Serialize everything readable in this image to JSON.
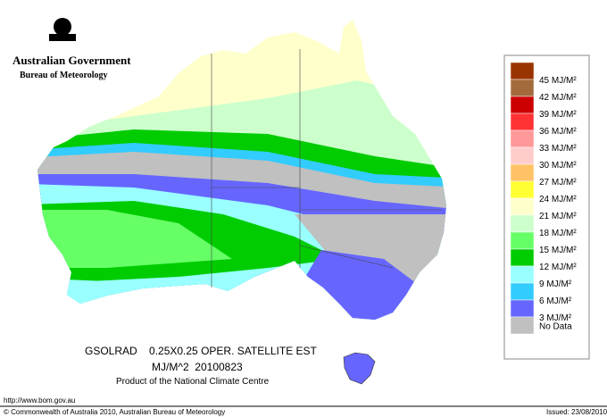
{
  "header": {
    "title": "Australian Government",
    "subtitle": "Bureau of Meteorology"
  },
  "legend": {
    "colors": [
      "#993300",
      "#a36a3c",
      "#cc0000",
      "#ff3333",
      "#ff9999",
      "#ffcccc",
      "#ffc266",
      "#ffff33",
      "#ffffcc",
      "#ccffcc",
      "#66ff66",
      "#00cc00",
      "#99ffff",
      "#33ccff",
      "#6666ff",
      "#c0c0c0"
    ],
    "labels": [
      "45 MJ/M²",
      "42 MJ/M²",
      "39 MJ/M²",
      "36 MJ/M²",
      "33 MJ/M²",
      "30 MJ/M²",
      "27 MJ/M²",
      "24 MJ/M²",
      "21 MJ/M²",
      "18 MJ/M²",
      "15 MJ/M²",
      "12 MJ/M²",
      "9 MJ/M²",
      "6 MJ/M²",
      "3 MJ/M²"
    ],
    "no_data": "No Data"
  },
  "caption": {
    "line1": "GSOLRAD    0.25X0.25 OPER. SATELLITE EST",
    "line2": "MJ/M^2  20100823",
    "line3": "Product of the National Climate Centre"
  },
  "footer": {
    "url": "http://www.bom.gov.au",
    "copyright": "© Commonwealth of Australia 2010, Australian Bureau of Meteorology",
    "issued": "Issued: 23/08/2010"
  }
}
